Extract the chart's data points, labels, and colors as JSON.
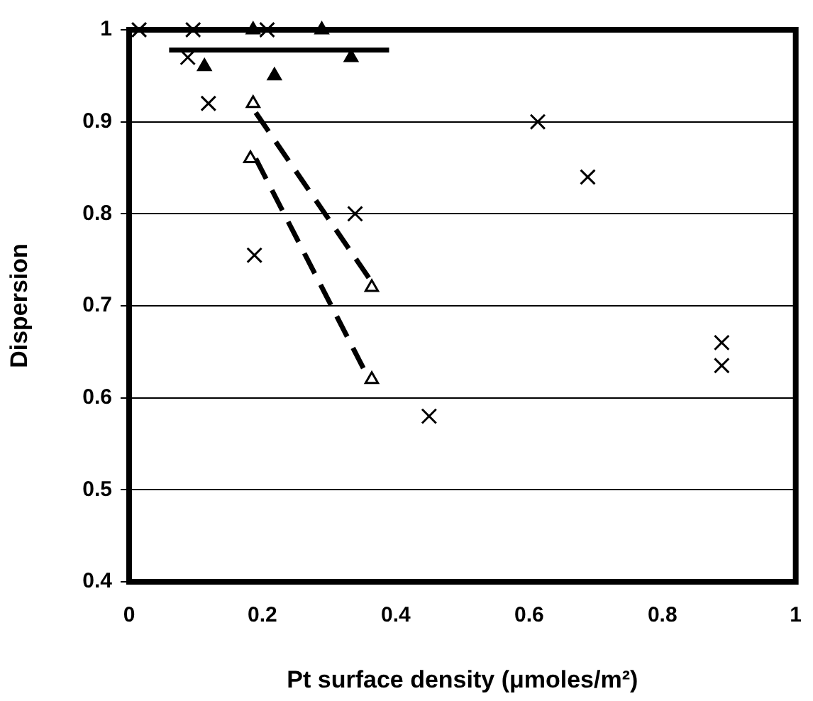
{
  "chart_data": {
    "type": "scatter",
    "xlabel": "Pt surface density (μmoles/m²)",
    "ylabel": "Dispersion",
    "xlim": [
      0,
      1
    ],
    "xticks": [
      0,
      0.2,
      0.4,
      0.6,
      0.8,
      1
    ],
    "ylim": [
      0.4,
      1
    ],
    "yticks": [
      0.4,
      0.5,
      0.6,
      0.7,
      0.8,
      0.9,
      1
    ],
    "grid": "y",
    "legend": false,
    "series": [
      {
        "marker": "cross",
        "color": "#000000",
        "x": [
          0.015,
          0.096,
          0.207,
          0.088,
          0.119,
          0.339,
          0.188,
          0.45,
          0.613,
          0.688,
          0.889,
          0.889
        ],
        "values": [
          1,
          1,
          1,
          0.97,
          0.92,
          0.8,
          0.755,
          0.58,
          0.9,
          0.84,
          0.66,
          0.635
        ]
      },
      {
        "marker": "triangle",
        "color": "#000000",
        "x": [
          0.186,
          0.289,
          0.113,
          0.218,
          0.333
        ],
        "values": [
          1,
          1,
          0.96,
          0.95,
          0.97
        ]
      },
      {
        "marker": "triangle-open",
        "color": "#000000",
        "x": [
          0.186,
          0.182,
          0.364,
          0.364
        ],
        "values": [
          0.92,
          0.86,
          0.72,
          0.62
        ]
      },
      {
        "type": "line",
        "line_style": "solid",
        "color": "#000000",
        "x": [
          0.06,
          0.39
        ],
        "values": [
          0.978,
          0.978
        ]
      },
      {
        "type": "line",
        "line_style": "dashed",
        "color": "#000000",
        "x": [
          0.19,
          0.36
        ],
        "values": [
          0.91,
          0.73
        ]
      },
      {
        "type": "line",
        "line_style": "dashed",
        "color": "#000000",
        "x": [
          0.19,
          0.36
        ],
        "values": [
          0.86,
          0.62
        ]
      }
    ]
  }
}
